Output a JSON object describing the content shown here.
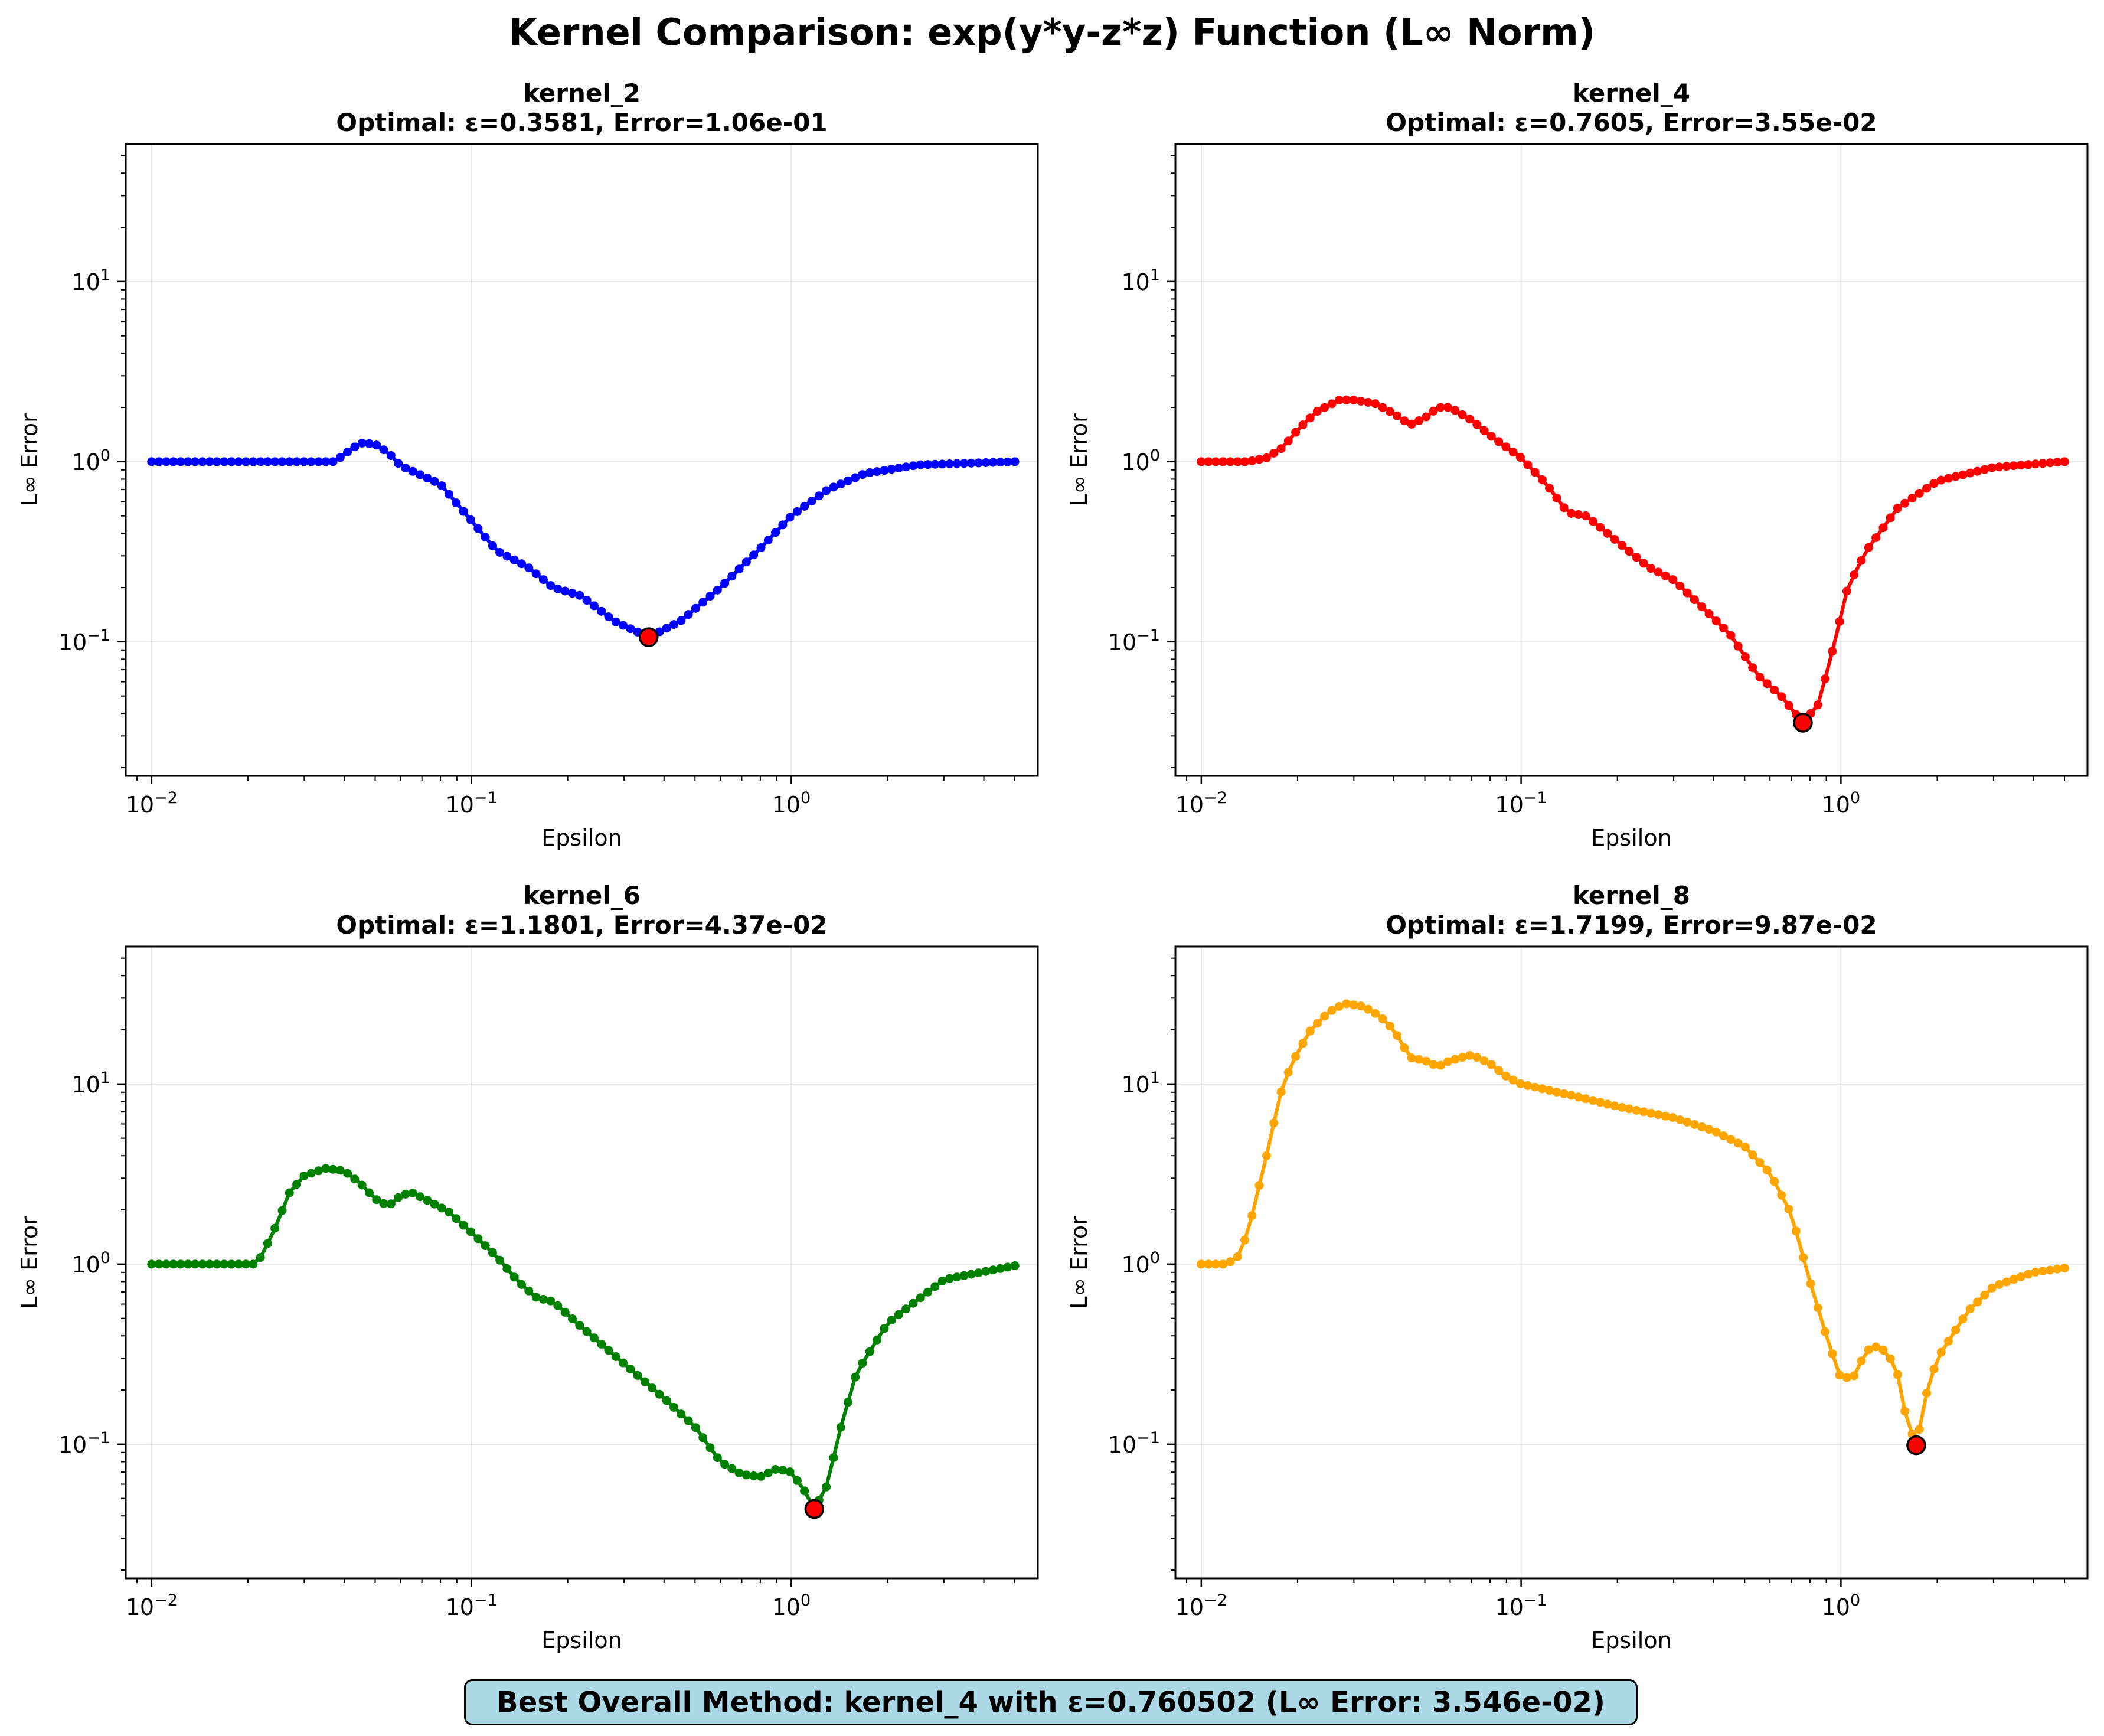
{
  "figure_title": "Kernel Comparison: exp(y*y-z*z) Function (L∞ Norm)",
  "summary": "Best Overall Method: kernel_4 with ε=0.760502 (L∞ Error: 3.546e-02)",
  "colors": {
    "kernel_2": "#0000ff",
    "kernel_4": "#ff0000",
    "kernel_6": "#008000",
    "kernel_8": "#ffa500",
    "optimal_marker": "#ff0000",
    "summary_box": "#add8e6"
  },
  "chart_data": [
    {
      "type": "line",
      "title": "kernel_2",
      "subtitle": "Optimal: ε=0.3581, Error=1.06e-01",
      "xlabel": "Epsilon",
      "ylabel": "L∞ Error",
      "xscale": "log",
      "yscale": "log",
      "xlim": [
        0.0083,
        5.9
      ],
      "ylim": [
        0.018,
        58
      ],
      "xticks": [
        0.01,
        0.1,
        1
      ],
      "xtick_labels": [
        "10",
        "10",
        "10"
      ],
      "xtick_exponents": [
        "−2",
        "−1",
        "0"
      ],
      "yticks": [
        0.1,
        1,
        10
      ],
      "ytick_labels": [
        "10",
        "10",
        "10"
      ],
      "ytick_exponents": [
        "−1",
        "0",
        "1"
      ],
      "grid": true,
      "x_range": [
        0.01,
        5.0
      ],
      "series": [
        {
          "color": "#0000ff",
          "curve": [
            [
              0.01,
              1.0
            ],
            [
              0.0375,
              1.0
            ],
            [
              0.04,
              1.1
            ],
            [
              0.045,
              1.27
            ],
            [
              0.05,
              1.25
            ],
            [
              0.055,
              1.12
            ],
            [
              0.06,
              0.95
            ],
            [
              0.08,
              0.75
            ],
            [
              0.1,
              0.47
            ],
            [
              0.12,
              0.32
            ],
            [
              0.15,
              0.26
            ],
            [
              0.18,
              0.2
            ],
            [
              0.22,
              0.18
            ],
            [
              0.28,
              0.13
            ],
            [
              0.3581,
              0.106
            ],
            [
              0.45,
              0.13
            ],
            [
              0.6,
              0.2
            ],
            [
              0.8,
              0.33
            ],
            [
              1.0,
              0.5
            ],
            [
              1.3,
              0.7
            ],
            [
              1.7,
              0.86
            ],
            [
              2.5,
              0.96
            ],
            [
              5.0,
              1.0
            ]
          ]
        }
      ],
      "optimal": {
        "x": 0.3581,
        "y": 0.106
      }
    },
    {
      "type": "line",
      "title": "kernel_4",
      "subtitle": "Optimal: ε=0.7605, Error=3.55e-02",
      "xlabel": "Epsilon",
      "ylabel": "L∞ Error",
      "xscale": "log",
      "yscale": "log",
      "xlim": [
        0.0083,
        5.9
      ],
      "ylim": [
        0.018,
        58
      ],
      "xticks": [
        0.01,
        0.1,
        1
      ],
      "xtick_labels": [
        "10",
        "10",
        "10"
      ],
      "xtick_exponents": [
        "−2",
        "−1",
        "0"
      ],
      "yticks": [
        0.1,
        1,
        10
      ],
      "ytick_labels": [
        "10",
        "10",
        "10"
      ],
      "ytick_exponents": [
        "−1",
        "0",
        "1"
      ],
      "grid": true,
      "x_range": [
        0.01,
        5.0
      ],
      "series": [
        {
          "color": "#ff0000",
          "curve": [
            [
              0.01,
              1.0
            ],
            [
              0.014,
              1.0
            ],
            [
              0.016,
              1.05
            ],
            [
              0.018,
              1.2
            ],
            [
              0.02,
              1.5
            ],
            [
              0.023,
              1.9
            ],
            [
              0.027,
              2.2
            ],
            [
              0.03,
              2.2
            ],
            [
              0.035,
              2.1
            ],
            [
              0.04,
              1.85
            ],
            [
              0.045,
              1.6
            ],
            [
              0.05,
              1.75
            ],
            [
              0.055,
              2.0
            ],
            [
              0.06,
              2.0
            ],
            [
              0.07,
              1.7
            ],
            [
              0.08,
              1.4
            ],
            [
              0.1,
              1.05
            ],
            [
              0.12,
              0.75
            ],
            [
              0.14,
              0.52
            ],
            [
              0.16,
              0.5
            ],
            [
              0.2,
              0.36
            ],
            [
              0.25,
              0.26
            ],
            [
              0.3,
              0.22
            ],
            [
              0.35,
              0.17
            ],
            [
              0.45,
              0.11
            ],
            [
              0.55,
              0.065
            ],
            [
              0.65,
              0.05
            ],
            [
              0.7605,
              0.0355
            ],
            [
              0.85,
              0.045
            ],
            [
              0.95,
              0.095
            ],
            [
              1.05,
              0.2
            ],
            [
              1.2,
              0.32
            ],
            [
              1.5,
              0.55
            ],
            [
              2.0,
              0.78
            ],
            [
              3.0,
              0.93
            ],
            [
              5.0,
              1.0
            ]
          ]
        }
      ],
      "optimal": {
        "x": 0.7605,
        "y": 0.0355
      }
    },
    {
      "type": "line",
      "title": "kernel_6",
      "subtitle": "Optimal: ε=1.1801, Error=4.37e-02",
      "xlabel": "Epsilon",
      "ylabel": "L∞ Error",
      "xscale": "log",
      "yscale": "log",
      "xlim": [
        0.0083,
        5.9
      ],
      "ylim": [
        0.018,
        58
      ],
      "xticks": [
        0.01,
        0.1,
        1
      ],
      "xtick_labels": [
        "10",
        "10",
        "10"
      ],
      "xtick_exponents": [
        "−2",
        "−1",
        "0"
      ],
      "yticks": [
        0.1,
        1,
        10
      ],
      "ytick_labels": [
        "10",
        "10",
        "10"
      ],
      "ytick_exponents": [
        "−1",
        "0",
        "1"
      ],
      "grid": true,
      "x_range": [
        0.01,
        5.0
      ],
      "series": [
        {
          "color": "#008000",
          "curve": [
            [
              0.01,
              1.0
            ],
            [
              0.021,
              1.0
            ],
            [
              0.022,
              1.1
            ],
            [
              0.024,
              1.5
            ],
            [
              0.027,
              2.5
            ],
            [
              0.03,
              3.1
            ],
            [
              0.035,
              3.4
            ],
            [
              0.04,
              3.3
            ],
            [
              0.045,
              2.8
            ],
            [
              0.05,
              2.3
            ],
            [
              0.055,
              2.1
            ],
            [
              0.06,
              2.4
            ],
            [
              0.065,
              2.5
            ],
            [
              0.075,
              2.2
            ],
            [
              0.085,
              1.95
            ],
            [
              0.1,
              1.5
            ],
            [
              0.12,
              1.1
            ],
            [
              0.14,
              0.8
            ],
            [
              0.16,
              0.65
            ],
            [
              0.18,
              0.62
            ],
            [
              0.22,
              0.45
            ],
            [
              0.3,
              0.28
            ],
            [
              0.4,
              0.18
            ],
            [
              0.5,
              0.125
            ],
            [
              0.6,
              0.08
            ],
            [
              0.7,
              0.068
            ],
            [
              0.8,
              0.066
            ],
            [
              0.9,
              0.073
            ],
            [
              1.0,
              0.07
            ],
            [
              1.1,
              0.055
            ],
            [
              1.1801,
              0.0437
            ],
            [
              1.3,
              0.06
            ],
            [
              1.4,
              0.11
            ],
            [
              1.6,
              0.25
            ],
            [
              2.0,
              0.47
            ],
            [
              3.0,
              0.82
            ],
            [
              5.0,
              0.98
            ]
          ]
        }
      ],
      "optimal": {
        "x": 1.1801,
        "y": 0.0437
      }
    },
    {
      "type": "line",
      "title": "kernel_8",
      "subtitle": "Optimal: ε=1.7199, Error=9.87e-02",
      "xlabel": "Epsilon",
      "ylabel": "L∞ Error",
      "xscale": "log",
      "yscale": "log",
      "xlim": [
        0.0083,
        5.9
      ],
      "ylim": [
        0.018,
        58
      ],
      "xticks": [
        0.01,
        0.1,
        1
      ],
      "xtick_labels": [
        "10",
        "10",
        "10"
      ],
      "xtick_exponents": [
        "−2",
        "−1",
        "0"
      ],
      "yticks": [
        0.1,
        1,
        10
      ],
      "ytick_labels": [
        "10",
        "10",
        "10"
      ],
      "ytick_exponents": [
        "−1",
        "0",
        "1"
      ],
      "grid": true,
      "x_range": [
        0.01,
        5.0
      ],
      "series": [
        {
          "color": "#ffa500",
          "curve": [
            [
              0.01,
              1.0
            ],
            [
              0.012,
              1.0
            ],
            [
              0.013,
              1.1
            ],
            [
              0.014,
              1.5
            ],
            [
              0.015,
              2.5
            ],
            [
              0.016,
              4.0
            ],
            [
              0.017,
              6.5
            ],
            [
              0.018,
              10
            ],
            [
              0.02,
              15
            ],
            [
              0.022,
              20
            ],
            [
              0.025,
              25
            ],
            [
              0.028,
              28
            ],
            [
              0.032,
              27
            ],
            [
              0.036,
              24
            ],
            [
              0.04,
              20
            ],
            [
              0.045,
              14
            ],
            [
              0.05,
              13.5
            ],
            [
              0.055,
              12.5
            ],
            [
              0.06,
              13.5
            ],
            [
              0.07,
              14.5
            ],
            [
              0.08,
              13
            ],
            [
              0.09,
              11
            ],
            [
              0.1,
              10
            ],
            [
              0.15,
              8.5
            ],
            [
              0.2,
              7.5
            ],
            [
              0.3,
              6.5
            ],
            [
              0.4,
              5.5
            ],
            [
              0.5,
              4.5
            ],
            [
              0.6,
              3.2
            ],
            [
              0.7,
              1.9
            ],
            [
              0.8,
              0.8
            ],
            [
              0.9,
              0.4
            ],
            [
              1.0,
              0.23
            ],
            [
              1.1,
              0.24
            ],
            [
              1.2,
              0.33
            ],
            [
              1.3,
              0.35
            ],
            [
              1.4,
              0.32
            ],
            [
              1.5,
              0.25
            ],
            [
              1.6,
              0.14
            ],
            [
              1.7199,
              0.0987
            ],
            [
              1.85,
              0.19
            ],
            [
              2.0,
              0.3
            ],
            [
              2.5,
              0.55
            ],
            [
              3.0,
              0.75
            ],
            [
              4.0,
              0.9
            ],
            [
              5.0,
              0.95
            ]
          ]
        }
      ],
      "optimal": {
        "x": 1.7199,
        "y": 0.0987
      }
    }
  ]
}
